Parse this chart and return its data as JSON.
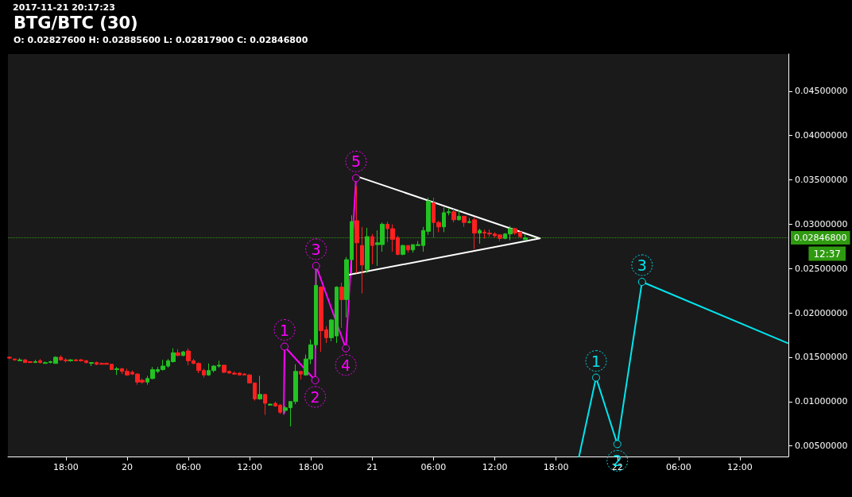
{
  "chart_data": {
    "type": "candlestick",
    "title": "BTG/BTC (30)",
    "subtitle": "O: 0.02827600 H: 0.02885600 L: 0.02817900 C: 0.02846800",
    "annotations": [
      "2017-11-21 20:17:23",
      "12:37",
      {
        "text": "1",
        "x": "2017-11-20T15:25",
        "y": 0.0162
      },
      {
        "text": "2",
        "x": "2017-11-20T18:25",
        "y": 0.0124
      },
      {
        "text": "3",
        "x": "2017-11-20T18:30",
        "y": 0.0253
      },
      {
        "text": "4",
        "x": "2017-11-20T21:25",
        "y": 0.016
      },
      {
        "text": "5",
        "x": "2017-11-20T22:25",
        "y": 0.0352
      },
      {
        "text": "1",
        "x": "2017-11-21T21:55",
        "y": 0.0127
      },
      {
        "text": "2",
        "x": "2017-11-22T00:00",
        "y": 0.0052
      },
      {
        "text": "3",
        "x": "2017-11-22T02:25",
        "y": 0.0235
      }
    ],
    "x": [
      "2017-11-19T12:30",
      "2017-11-19T13:00",
      "2017-11-19T13:30",
      "2017-11-19T14:00",
      "2017-11-19T14:30",
      "2017-11-19T15:00",
      "2017-11-19T15:30",
      "2017-11-19T16:00",
      "2017-11-19T16:30",
      "2017-11-19T17:00",
      "2017-11-19T17:30",
      "2017-11-19T18:00",
      "2017-11-19T18:30",
      "2017-11-19T19:00",
      "2017-11-19T19:30",
      "2017-11-19T20:00",
      "2017-11-19T20:30",
      "2017-11-19T21:00",
      "2017-11-19T21:30",
      "2017-11-19T22:00",
      "2017-11-19T22:30",
      "2017-11-19T23:00",
      "2017-11-19T23:30",
      "2017-11-20T00:00",
      "2017-11-20T00:30",
      "2017-11-20T01:00",
      "2017-11-20T01:30",
      "2017-11-20T02:00",
      "2017-11-20T02:30",
      "2017-11-20T03:00",
      "2017-11-20T03:30",
      "2017-11-20T04:00",
      "2017-11-20T04:30",
      "2017-11-20T05:00",
      "2017-11-20T05:30",
      "2017-11-20T06:00",
      "2017-11-20T06:30",
      "2017-11-20T07:00",
      "2017-11-20T07:30",
      "2017-11-20T08:00",
      "2017-11-20T08:30",
      "2017-11-20T09:00",
      "2017-11-20T09:30",
      "2017-11-20T10:00",
      "2017-11-20T10:30",
      "2017-11-20T11:00",
      "2017-11-20T11:30",
      "2017-11-20T12:00",
      "2017-11-20T12:30",
      "2017-11-20T13:00",
      "2017-11-20T13:30",
      "2017-11-20T14:00",
      "2017-11-20T14:30",
      "2017-11-20T15:00",
      "2017-11-20T15:30",
      "2017-11-20T16:00",
      "2017-11-20T16:30",
      "2017-11-20T17:00",
      "2017-11-20T17:30",
      "2017-11-20T18:00",
      "2017-11-20T18:30",
      "2017-11-20T19:00",
      "2017-11-20T19:30",
      "2017-11-20T20:00",
      "2017-11-20T20:30",
      "2017-11-20T21:00",
      "2017-11-20T21:30",
      "2017-11-20T22:00",
      "2017-11-20T22:30",
      "2017-11-20T23:00",
      "2017-11-20T23:30",
      "2017-11-21T00:00",
      "2017-11-21T00:30",
      "2017-11-21T01:00",
      "2017-11-21T01:30",
      "2017-11-21T02:00",
      "2017-11-21T02:30",
      "2017-11-21T03:00",
      "2017-11-21T03:30",
      "2017-11-21T04:00",
      "2017-11-21T04:30",
      "2017-11-21T05:00",
      "2017-11-21T05:30",
      "2017-11-21T06:00",
      "2017-11-21T06:30",
      "2017-11-21T07:00",
      "2017-11-21T07:30",
      "2017-11-21T08:00",
      "2017-11-21T08:30",
      "2017-11-21T09:00",
      "2017-11-21T09:30",
      "2017-11-21T10:00",
      "2017-11-21T10:30",
      "2017-11-21T11:00",
      "2017-11-21T11:30",
      "2017-11-21T12:00",
      "2017-11-21T12:30",
      "2017-11-21T13:00",
      "2017-11-21T13:30",
      "2017-11-21T14:00",
      "2017-11-21T14:30",
      "2017-11-21T15:00"
    ],
    "ohlc": [
      [
        0.015,
        0.0151,
        0.0148,
        0.0149
      ],
      [
        0.0148,
        0.0148,
        0.0146,
        0.0147
      ],
      [
        0.0146,
        0.0149,
        0.0146,
        0.0147
      ],
      [
        0.0147,
        0.0148,
        0.0144,
        0.0144
      ],
      [
        0.0145,
        0.0145,
        0.0144,
        0.0144
      ],
      [
        0.0144,
        0.0147,
        0.0144,
        0.0145
      ],
      [
        0.0146,
        0.0148,
        0.0143,
        0.0144
      ],
      [
        0.0143,
        0.0145,
        0.0143,
        0.0144
      ],
      [
        0.0144,
        0.0146,
        0.0143,
        0.0145
      ],
      [
        0.0143,
        0.0151,
        0.0143,
        0.015
      ],
      [
        0.015,
        0.0152,
        0.0146,
        0.0147
      ],
      [
        0.0147,
        0.0149,
        0.0144,
        0.0146
      ],
      [
        0.0146,
        0.0148,
        0.0145,
        0.0147
      ],
      [
        0.0147,
        0.0148,
        0.0146,
        0.0146
      ],
      [
        0.0147,
        0.0148,
        0.0145,
        0.0146
      ],
      [
        0.0146,
        0.0147,
        0.0143,
        0.0144
      ],
      [
        0.0143,
        0.0144,
        0.014,
        0.0144
      ],
      [
        0.0144,
        0.0145,
        0.0141,
        0.0142
      ],
      [
        0.0143,
        0.0144,
        0.0142,
        0.0142
      ],
      [
        0.0143,
        0.0144,
        0.0142,
        0.0142
      ],
      [
        0.0142,
        0.0142,
        0.0136,
        0.0136
      ],
      [
        0.0136,
        0.0139,
        0.013,
        0.0137
      ],
      [
        0.0137,
        0.0138,
        0.0131,
        0.0134
      ],
      [
        0.0134,
        0.0137,
        0.0129,
        0.013
      ],
      [
        0.0133,
        0.0135,
        0.013,
        0.0131
      ],
      [
        0.0131,
        0.0132,
        0.0119,
        0.0122
      ],
      [
        0.0124,
        0.0126,
        0.012,
        0.0122
      ],
      [
        0.0122,
        0.0129,
        0.0119,
        0.0126
      ],
      [
        0.0126,
        0.0139,
        0.0125,
        0.0136
      ],
      [
        0.0134,
        0.0139,
        0.0132,
        0.0136
      ],
      [
        0.0136,
        0.0147,
        0.0135,
        0.014
      ],
      [
        0.014,
        0.0148,
        0.0138,
        0.0146
      ],
      [
        0.0145,
        0.016,
        0.0144,
        0.0155
      ],
      [
        0.0155,
        0.0159,
        0.0151,
        0.0152
      ],
      [
        0.0152,
        0.0157,
        0.0151,
        0.0156
      ],
      [
        0.0157,
        0.016,
        0.0141,
        0.0146
      ],
      [
        0.0146,
        0.0148,
        0.0142,
        0.0143
      ],
      [
        0.0143,
        0.0144,
        0.0132,
        0.0135
      ],
      [
        0.0135,
        0.0137,
        0.0127,
        0.013
      ],
      [
        0.013,
        0.0143,
        0.0129,
        0.0135
      ],
      [
        0.0135,
        0.0141,
        0.0133,
        0.014
      ],
      [
        0.014,
        0.0146,
        0.0138,
        0.0141
      ],
      [
        0.0141,
        0.0141,
        0.0132,
        0.0133
      ],
      [
        0.0134,
        0.0135,
        0.0132,
        0.0132
      ],
      [
        0.0132,
        0.0134,
        0.013,
        0.0131
      ],
      [
        0.0132,
        0.0133,
        0.013,
        0.013
      ],
      [
        0.0131,
        0.0132,
        0.013,
        0.013
      ],
      [
        0.013,
        0.0131,
        0.0121,
        0.0121
      ],
      [
        0.0121,
        0.0121,
        0.0101,
        0.0103
      ],
      [
        0.0103,
        0.0129,
        0.0102,
        0.0108
      ],
      [
        0.0108,
        0.0108,
        0.0085,
        0.0098
      ],
      [
        0.0096,
        0.0098,
        0.0096,
        0.0097
      ],
      [
        0.0098,
        0.01,
        0.0094,
        0.0095
      ],
      [
        0.0096,
        0.0097,
        0.0086,
        0.0088
      ],
      [
        0.009,
        0.0095,
        0.0087,
        0.0093
      ],
      [
        0.0093,
        0.01,
        0.0072,
        0.01
      ],
      [
        0.01,
        0.0142,
        0.0097,
        0.0134
      ],
      [
        0.0134,
        0.0134,
        0.0125,
        0.0131
      ],
      [
        0.013,
        0.0153,
        0.0129,
        0.0148
      ],
      [
        0.0148,
        0.017,
        0.0142,
        0.0164
      ],
      [
        0.0164,
        0.025,
        0.016,
        0.0231
      ],
      [
        0.0229,
        0.023,
        0.0156,
        0.018
      ],
      [
        0.0181,
        0.0185,
        0.0166,
        0.0172
      ],
      [
        0.0172,
        0.0193,
        0.0168,
        0.0192
      ],
      [
        0.0174,
        0.023,
        0.0166,
        0.0229
      ],
      [
        0.0229,
        0.0234,
        0.0183,
        0.0215
      ],
      [
        0.0215,
        0.0263,
        0.0195,
        0.026
      ],
      [
        0.026,
        0.031,
        0.0244,
        0.0303
      ],
      [
        0.0304,
        0.0343,
        0.0245,
        0.0279
      ],
      [
        0.0276,
        0.0297,
        0.0222,
        0.0254
      ],
      [
        0.0249,
        0.0296,
        0.0245,
        0.0286
      ],
      [
        0.0286,
        0.0289,
        0.0255,
        0.0276
      ],
      [
        0.0277,
        0.0293,
        0.0253,
        0.0279
      ],
      [
        0.0277,
        0.0302,
        0.0269,
        0.03
      ],
      [
        0.03,
        0.0303,
        0.028,
        0.0295
      ],
      [
        0.0295,
        0.03,
        0.0269,
        0.0283
      ],
      [
        0.0285,
        0.0287,
        0.0265,
        0.0266
      ],
      [
        0.0266,
        0.0277,
        0.0265,
        0.0276
      ],
      [
        0.0276,
        0.0276,
        0.0268,
        0.0271
      ],
      [
        0.0271,
        0.0277,
        0.0268,
        0.0277
      ],
      [
        0.0276,
        0.0281,
        0.0276,
        0.0277
      ],
      [
        0.0276,
        0.0297,
        0.0269,
        0.0293
      ],
      [
        0.0292,
        0.033,
        0.0288,
        0.0326
      ],
      [
        0.0324,
        0.033,
        0.0285,
        0.0302
      ],
      [
        0.0302,
        0.0304,
        0.0291,
        0.0297
      ],
      [
        0.0297,
        0.0319,
        0.0291,
        0.0313
      ],
      [
        0.0313,
        0.0318,
        0.031,
        0.0314
      ],
      [
        0.0314,
        0.0317,
        0.0302,
        0.0305
      ],
      [
        0.0305,
        0.0316,
        0.0304,
        0.0309
      ],
      [
        0.0309,
        0.0309,
        0.0297,
        0.0302
      ],
      [
        0.0302,
        0.0307,
        0.0301,
        0.0303
      ],
      [
        0.0305,
        0.0308,
        0.0272,
        0.029
      ],
      [
        0.029,
        0.0295,
        0.0278,
        0.0293
      ],
      [
        0.0291,
        0.0294,
        0.0284,
        0.029
      ],
      [
        0.029,
        0.0294,
        0.0286,
        0.0289
      ],
      [
        0.0289,
        0.0291,
        0.0285,
        0.0287
      ],
      [
        0.0288,
        0.0288,
        0.0281,
        0.0284
      ],
      [
        0.0284,
        0.029,
        0.0283,
        0.0289
      ],
      [
        0.0289,
        0.0298,
        0.0282,
        0.0295
      ],
      [
        0.0295,
        0.0296,
        0.0288,
        0.029
      ],
      [
        0.0291,
        0.0292,
        0.0284,
        0.0286
      ],
      [
        0.028276,
        0.028856,
        0.028179,
        0.028468
      ]
    ],
    "colors": [
      "#ff2020",
      "#ff2020",
      "#22c322",
      "#ff2020",
      "#ff2020",
      "#22c322",
      "#ff2020",
      "#22c322",
      "#22c322",
      "#22c322",
      "#ff2020",
      "#ff2020",
      "#22c322",
      "#ff2020",
      "#ff2020",
      "#ff2020",
      "#22c322",
      "#ff2020",
      "#ff2020",
      "#ff2020",
      "#ff2020",
      "#22c322",
      "#ff2020",
      "#ff2020",
      "#ff2020",
      "#ff2020",
      "#ff2020",
      "#22c322",
      "#22c322",
      "#22c322",
      "#22c322",
      "#22c322",
      "#22c322",
      "#ff2020",
      "#22c322",
      "#ff2020",
      "#ff2020",
      "#ff2020",
      "#ff2020",
      "#22c322",
      "#22c322",
      "#22c322",
      "#ff2020",
      "#ff2020",
      "#ff2020",
      "#ff2020",
      "#ff2020",
      "#ff2020",
      "#ff2020",
      "#22c322",
      "#ff2020",
      "#22c322",
      "#ff2020",
      "#ff2020",
      "#22c322",
      "#22c322",
      "#22c322",
      "#ff2020",
      "#22c322",
      "#22c322",
      "#22c322",
      "#ff2020",
      "#ff2020",
      "#22c322",
      "#22c322",
      "#ff2020",
      "#22c322",
      "#22c322",
      "#ff2020",
      "#ff2020",
      "#22c322",
      "#ff2020",
      "#22c322",
      "#22c322",
      "#ff2020",
      "#ff2020",
      "#ff2020",
      "#22c322",
      "#ff2020",
      "#22c322",
      "#22c322",
      "#22c322",
      "#22c322",
      "#ff2020",
      "#ff2020",
      "#22c322",
      "#22c322",
      "#ff2020",
      "#22c322",
      "#ff2020",
      "#22c322",
      "#ff2020",
      "#22c322",
      "#ff2020",
      "#ff2020",
      "#ff2020",
      "#ff2020",
      "#22c322",
      "#22c322",
      "#ff2020",
      "#ff2020",
      "#22c322"
    ],
    "series": [
      {
        "type": "line",
        "color": "#ff00ff",
        "marker": "circle",
        "x": [
          "2017-11-20T15:20",
          "2017-11-20T15:25",
          "2017-11-20T18:25",
          "2017-11-20T18:30",
          "2017-11-20T21:25",
          "2017-11-20T22:25"
        ],
        "values": [
          0.0086,
          0.0162,
          0.0124,
          0.0253,
          0.016,
          0.0352
        ]
      },
      {
        "type": "line",
        "color": "#ffffff",
        "x": [
          "2017-11-20T21:45",
          "2017-11-21T16:25",
          "2017-11-20T22:30"
        ],
        "values": [
          0.0243,
          0.0284,
          0.0354
        ]
      },
      {
        "type": "line",
        "color": "#00e5ee",
        "marker": "circle",
        "x": [
          "2017-11-21T20:15",
          "2017-11-21T21:55",
          "2017-11-22T00:00",
          "2017-11-22T02:25",
          "2017-11-22T16:40"
        ],
        "values": [
          0.0038,
          0.0127,
          0.0052,
          0.0235,
          0.0166
        ]
      }
    ],
    "xlim": [
      "2017-11-19T12:20",
      "2017-11-22T16:45"
    ],
    "xticks": [
      {
        "value": "2017-11-19T18:00",
        "label": "18:00"
      },
      {
        "value": "2017-11-20T00:00",
        "label": "20"
      },
      {
        "value": "2017-11-20T06:00",
        "label": "06:00"
      },
      {
        "value": "2017-11-20T12:00",
        "label": "12:00"
      },
      {
        "value": "2017-11-20T18:00",
        "label": "18:00"
      },
      {
        "value": "2017-11-21T00:00",
        "label": "21"
      },
      {
        "value": "2017-11-21T06:00",
        "label": "06:00"
      },
      {
        "value": "2017-11-21T12:00",
        "label": "12:00"
      },
      {
        "value": "2017-11-21T18:00",
        "label": "18:00"
      },
      {
        "value": "2017-11-22T00:00",
        "label": "22"
      },
      {
        "value": "2017-11-22T06:00",
        "label": "06:00"
      },
      {
        "value": "2017-11-22T12:00",
        "label": "12:00"
      }
    ],
    "ylim": [
      0.0038,
      0.0492
    ],
    "yticks": [
      {
        "value": 0.005,
        "label": "0.00500000"
      },
      {
        "value": 0.01,
        "label": "0.01000000"
      },
      {
        "value": 0.015,
        "label": "0.01500000"
      },
      {
        "value": 0.02,
        "label": "0.02000000"
      },
      {
        "value": 0.025,
        "label": "0.02500000"
      },
      {
        "value": 0.03,
        "label": "0.03000000"
      },
      {
        "value": 0.035,
        "label": "0.03500000"
      },
      {
        "value": 0.04,
        "label": "0.04000000"
      },
      {
        "value": 0.045,
        "label": "0.04500000"
      }
    ],
    "ref_lines": [
      {
        "axis": "y",
        "value": 0.028468,
        "label": "0.02846800",
        "color": "#2f9a10",
        "line_style": "dotted"
      }
    ]
  }
}
